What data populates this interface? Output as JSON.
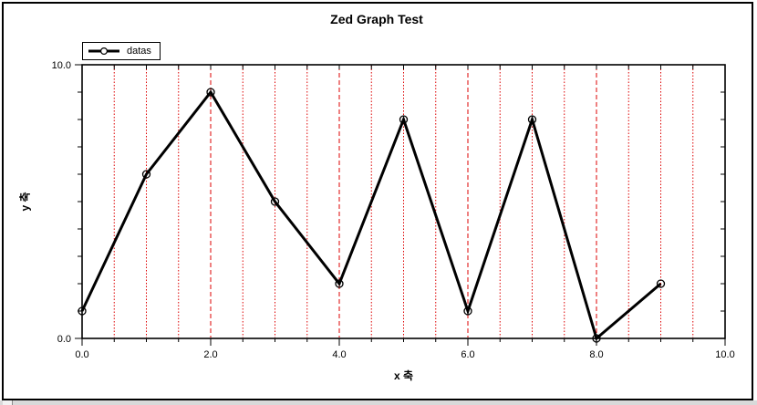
{
  "chart_data": {
    "type": "line",
    "title": "Zed Graph Test",
    "xlabel": "x 축",
    "ylabel": "y 축",
    "xlim": [
      0,
      10
    ],
    "ylim": [
      0,
      10
    ],
    "x_tick_values": [
      0,
      2,
      4,
      6,
      8,
      10
    ],
    "x_tick_labels": [
      "0.0",
      "2.0",
      "4.0",
      "6.0",
      "8.0",
      "10.0"
    ],
    "x_minor_step": 0.5,
    "y_tick_values": [
      0,
      10
    ],
    "y_tick_labels": [
      "0.0",
      "10.0"
    ],
    "y_minor_step": 1,
    "grid": {
      "color": "#dd0000",
      "x_major_style": "dashed",
      "x_minor_style": "dotted",
      "y_grid": false
    },
    "legend_position": "top-left",
    "series": [
      {
        "name": "datas",
        "color": "#000000",
        "marker": "open-circle",
        "x": [
          0,
          1,
          2,
          3,
          4,
          5,
          6,
          7,
          8,
          9
        ],
        "y": [
          1,
          6,
          9,
          5,
          2,
          8,
          1,
          8,
          0,
          2
        ]
      }
    ]
  },
  "window": {
    "frame_color": "#000000",
    "bottom_strip_color": "#d9d9d9"
  }
}
